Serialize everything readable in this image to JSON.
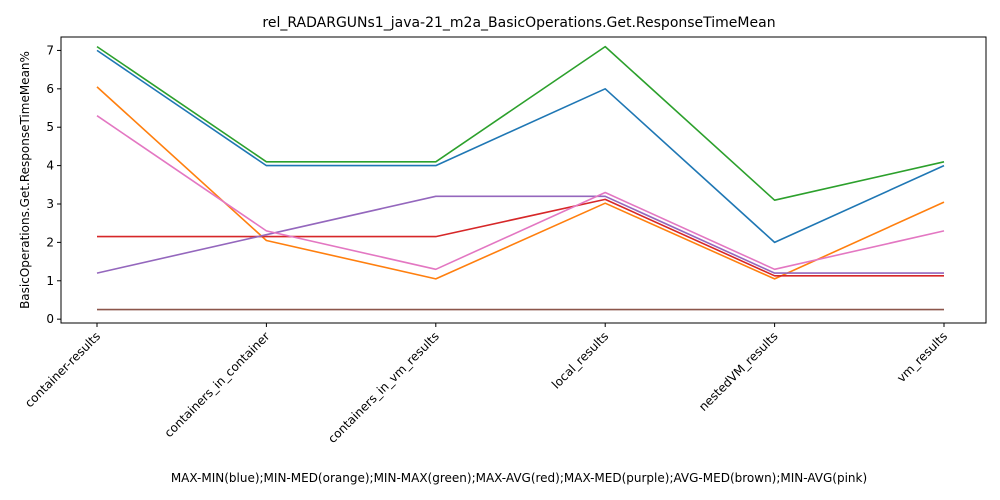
{
  "chart_data": {
    "type": "line",
    "title": "rel_RADARGUNs1_java-21_m2a_BasicOperations.Get.ResponseTimeMean",
    "xlabel": "MAX-MIN(blue);MIN-MED(orange);MIN-MAX(green);MAX-AVG(red);MAX-MED(purple);AVG-MED(brown);MIN-AVG(pink)",
    "ylabel": "BasicOperations.Get.ResponseTimeMean%",
    "categories": [
      "container-results",
      "containers_in_container",
      "containers_in_vm_results",
      "local_results",
      "nestedVM_results",
      "vm_results"
    ],
    "ylim": [
      -0.1,
      7.35
    ],
    "yticks": [
      0,
      1,
      2,
      3,
      4,
      5,
      6,
      7
    ],
    "grid": false,
    "series": [
      {
        "color": "#1f77b4",
        "values": [
          7.0,
          4.0,
          4.0,
          6.0,
          2.0,
          4.0
        ]
      },
      {
        "color": "#ff7f0e",
        "values": [
          6.05,
          2.05,
          1.05,
          3.02,
          1.05,
          3.05
        ]
      },
      {
        "color": "#2ca02c",
        "values": [
          7.1,
          4.1,
          4.1,
          7.1,
          3.1,
          4.1
        ]
      },
      {
        "color": "#d62728",
        "values": [
          2.15,
          2.15,
          2.15,
          3.12,
          1.13,
          1.13
        ]
      },
      {
        "color": "#9467bd",
        "values": [
          1.2,
          2.2,
          3.2,
          3.2,
          1.2,
          1.2
        ]
      },
      {
        "color": "#8c564b",
        "values": [
          0.25,
          0.25,
          0.25,
          0.25,
          0.25,
          0.25
        ]
      },
      {
        "color": "#e377c2",
        "values": [
          5.3,
          2.3,
          1.3,
          3.3,
          1.3,
          2.3
        ]
      }
    ]
  }
}
